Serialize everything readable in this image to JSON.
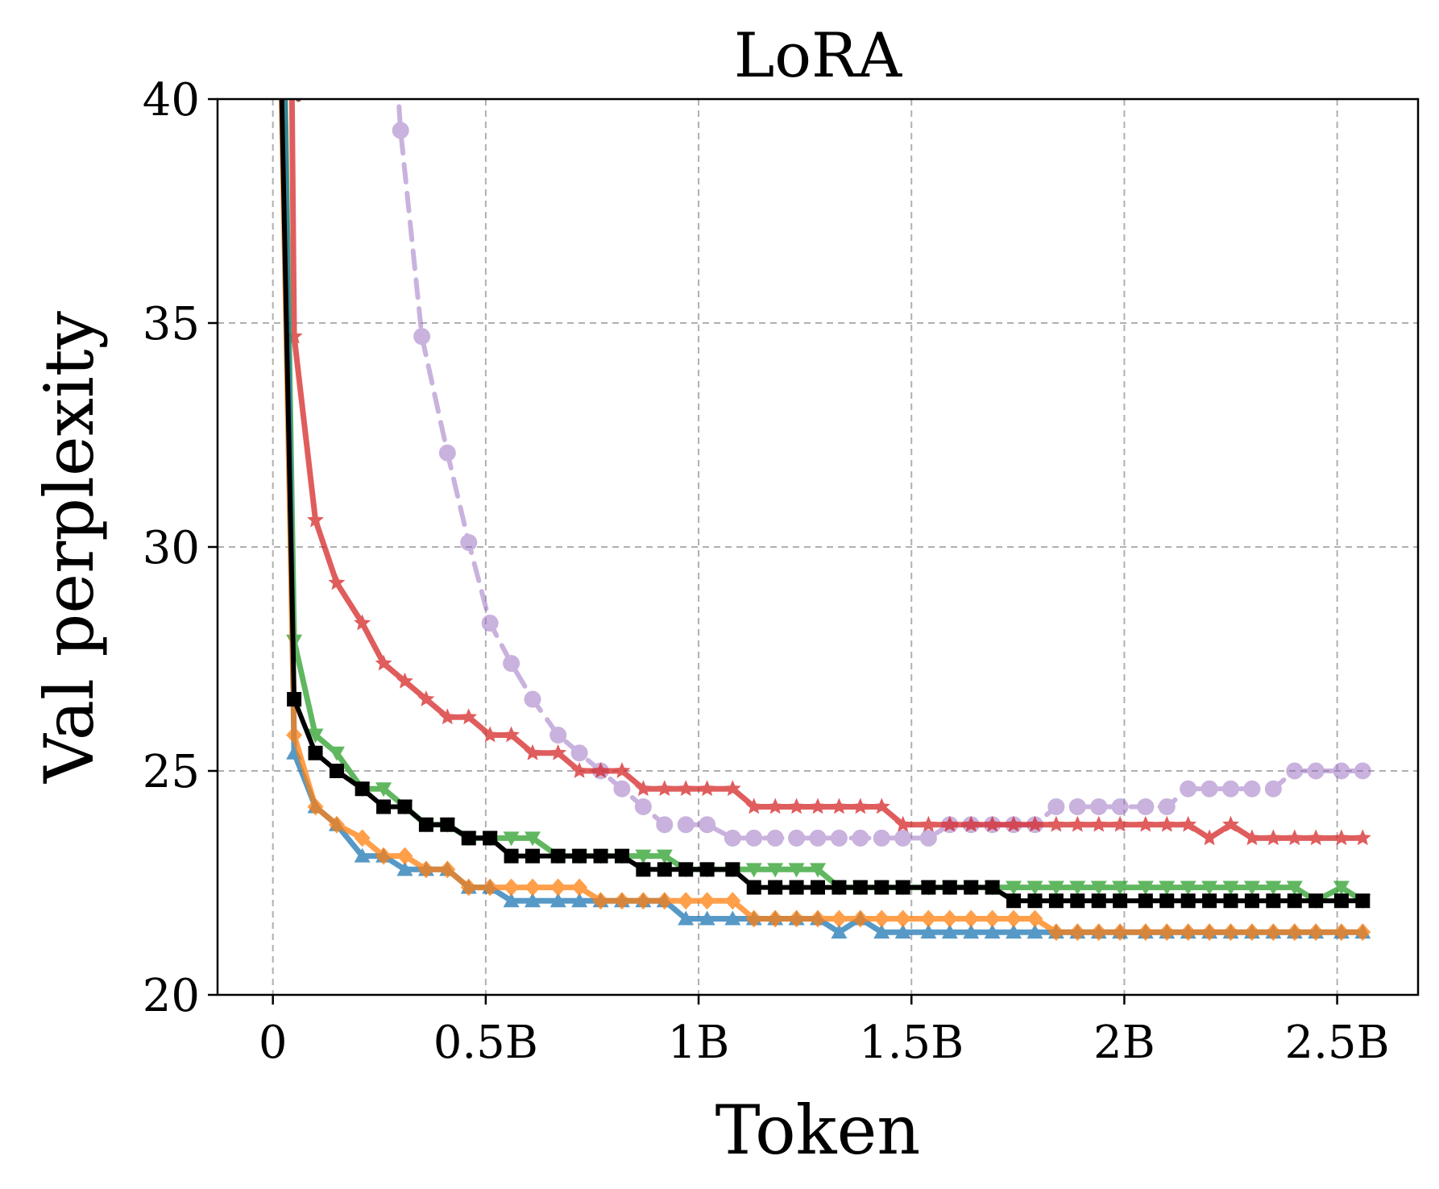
{
  "chart_data": {
    "type": "line",
    "title": "LoRA",
    "xlabel": "Token",
    "ylabel": "Val perplexity",
    "xlim": [
      -0.13,
      2.69
    ],
    "ylim": [
      20,
      40
    ],
    "x_unit": "billions of tokens",
    "grid": true,
    "xticks": [
      {
        "value": 0,
        "label": "0"
      },
      {
        "value": 0.5,
        "label": "0.5B"
      },
      {
        "value": 1.0,
        "label": "1B"
      },
      {
        "value": 1.5,
        "label": "1.5B"
      },
      {
        "value": 2.0,
        "label": "2B"
      },
      {
        "value": 2.5,
        "label": "2.5B"
      }
    ],
    "yticks": [
      {
        "value": 20,
        "label": "20"
      },
      {
        "value": 25,
        "label": "25"
      },
      {
        "value": 30,
        "label": "30"
      },
      {
        "value": 35,
        "label": "35"
      },
      {
        "value": 40,
        "label": "40"
      }
    ],
    "series": [
      {
        "color": "#9467bd",
        "marker": "circle",
        "dashed": true,
        "opacity": 0.5,
        "x": [
          0.26,
          0.3,
          0.35,
          0.41,
          0.46,
          0.51,
          0.56,
          0.61,
          0.67,
          0.72,
          0.77,
          0.82,
          0.87,
          0.92,
          0.97,
          1.02,
          1.08,
          1.13,
          1.18,
          1.23,
          1.28,
          1.33,
          1.38,
          1.43,
          1.48,
          1.54,
          1.59,
          1.64,
          1.69,
          1.74,
          1.79,
          1.84,
          1.89,
          1.94,
          1.99,
          2.05,
          2.1,
          2.15,
          2.2,
          2.25,
          2.3,
          2.35,
          2.4,
          2.45,
          2.51,
          2.56
        ],
        "y": [
          45.0,
          39.3,
          34.7,
          32.1,
          30.1,
          28.3,
          27.4,
          26.6,
          25.8,
          25.4,
          25.0,
          24.6,
          24.2,
          23.8,
          23.8,
          23.8,
          23.5,
          23.5,
          23.5,
          23.5,
          23.5,
          23.5,
          23.5,
          23.5,
          23.5,
          23.5,
          23.8,
          23.8,
          23.8,
          23.8,
          23.8,
          24.2,
          24.2,
          24.2,
          24.2,
          24.2,
          24.2,
          24.6,
          24.6,
          24.6,
          24.6,
          24.6,
          25.0,
          25.0,
          25.0,
          25.0
        ]
      },
      {
        "color": "#d62728",
        "marker": "star",
        "dashed": false,
        "opacity": 0.75,
        "x": [
          0.04,
          0.05,
          0.1,
          0.15,
          0.21,
          0.26,
          0.31,
          0.36,
          0.41,
          0.46,
          0.51,
          0.56,
          0.61,
          0.67,
          0.72,
          0.77,
          0.82,
          0.87,
          0.92,
          0.97,
          1.02,
          1.08,
          1.13,
          1.18,
          1.23,
          1.28,
          1.33,
          1.38,
          1.43,
          1.48,
          1.54,
          1.59,
          1.64,
          1.69,
          1.74,
          1.79,
          1.84,
          1.89,
          1.94,
          1.99,
          2.05,
          2.1,
          2.15,
          2.2,
          2.25,
          2.3,
          2.35,
          2.4,
          2.45,
          2.51,
          2.56
        ],
        "y": [
          45.0,
          34.7,
          30.6,
          29.2,
          28.3,
          27.4,
          27.0,
          26.6,
          26.2,
          26.2,
          25.8,
          25.8,
          25.4,
          25.4,
          25.0,
          25.0,
          25.0,
          24.6,
          24.6,
          24.6,
          24.6,
          24.6,
          24.2,
          24.2,
          24.2,
          24.2,
          24.2,
          24.2,
          24.2,
          23.8,
          23.8,
          23.8,
          23.8,
          23.8,
          23.8,
          23.8,
          23.8,
          23.8,
          23.8,
          23.8,
          23.8,
          23.8,
          23.8,
          23.5,
          23.8,
          23.5,
          23.5,
          23.5,
          23.5,
          23.5,
          23.5
        ]
      },
      {
        "color": "#2ca02c",
        "marker": "triangle-down",
        "dashed": false,
        "opacity": 0.75,
        "x": [
          0.02,
          0.05,
          0.1,
          0.15,
          0.21,
          0.26,
          0.31,
          0.36,
          0.41,
          0.46,
          0.51,
          0.56,
          0.61,
          0.67,
          0.72,
          0.77,
          0.82,
          0.87,
          0.92,
          0.97,
          1.02,
          1.08,
          1.13,
          1.18,
          1.23,
          1.28,
          1.33,
          1.38,
          1.43,
          1.48,
          1.54,
          1.59,
          1.64,
          1.69,
          1.74,
          1.79,
          1.84,
          1.89,
          1.94,
          1.99,
          2.05,
          2.1,
          2.15,
          2.2,
          2.25,
          2.3,
          2.35,
          2.4,
          2.45,
          2.51,
          2.56
        ],
        "y": [
          45.0,
          27.9,
          25.8,
          25.4,
          24.6,
          24.6,
          24.2,
          23.8,
          23.8,
          23.5,
          23.5,
          23.5,
          23.5,
          23.1,
          23.1,
          23.1,
          23.1,
          23.1,
          23.1,
          22.8,
          22.8,
          22.8,
          22.8,
          22.8,
          22.8,
          22.8,
          22.4,
          22.4,
          22.4,
          22.4,
          22.4,
          22.4,
          22.4,
          22.4,
          22.4,
          22.4,
          22.4,
          22.4,
          22.4,
          22.4,
          22.4,
          22.4,
          22.4,
          22.4,
          22.4,
          22.4,
          22.4,
          22.4,
          22.1,
          22.4,
          22.1
        ]
      },
      {
        "color": "#1f77b4",
        "marker": "triangle-up",
        "dashed": false,
        "opacity": 0.75,
        "x": [
          0.02,
          0.05,
          0.1,
          0.15,
          0.21,
          0.26,
          0.31,
          0.36,
          0.41,
          0.46,
          0.51,
          0.56,
          0.61,
          0.67,
          0.72,
          0.77,
          0.82,
          0.87,
          0.92,
          0.97,
          1.02,
          1.08,
          1.13,
          1.18,
          1.23,
          1.28,
          1.33,
          1.38,
          1.43,
          1.48,
          1.54,
          1.59,
          1.64,
          1.69,
          1.74,
          1.79,
          1.84,
          1.89,
          1.94,
          1.99,
          2.05,
          2.1,
          2.15,
          2.2,
          2.25,
          2.3,
          2.35,
          2.4,
          2.45,
          2.51,
          2.56
        ],
        "y": [
          45.0,
          25.4,
          24.2,
          23.8,
          23.1,
          23.1,
          22.8,
          22.8,
          22.8,
          22.4,
          22.4,
          22.1,
          22.1,
          22.1,
          22.1,
          22.1,
          22.1,
          22.1,
          22.1,
          21.7,
          21.7,
          21.7,
          21.7,
          21.7,
          21.7,
          21.7,
          21.4,
          21.7,
          21.4,
          21.4,
          21.4,
          21.4,
          21.4,
          21.4,
          21.4,
          21.4,
          21.4,
          21.4,
          21.4,
          21.4,
          21.4,
          21.4,
          21.4,
          21.4,
          21.4,
          21.4,
          21.4,
          21.4,
          21.4,
          21.4,
          21.4
        ]
      },
      {
        "color": "#ff7f0e",
        "marker": "diamond",
        "dashed": false,
        "opacity": 0.75,
        "x": [
          0.01,
          0.05,
          0.1,
          0.15,
          0.21,
          0.26,
          0.31,
          0.36,
          0.41,
          0.46,
          0.51,
          0.56,
          0.61,
          0.67,
          0.72,
          0.77,
          0.82,
          0.87,
          0.92,
          0.97,
          1.02,
          1.08,
          1.13,
          1.18,
          1.23,
          1.28,
          1.33,
          1.38,
          1.43,
          1.48,
          1.54,
          1.59,
          1.64,
          1.69,
          1.74,
          1.79,
          1.84,
          1.89,
          1.94,
          1.99,
          2.05,
          2.1,
          2.15,
          2.2,
          2.25,
          2.3,
          2.35,
          2.4,
          2.45,
          2.51,
          2.56
        ],
        "y": [
          45.0,
          25.8,
          24.2,
          23.8,
          23.5,
          23.1,
          23.1,
          22.8,
          22.8,
          22.4,
          22.4,
          22.4,
          22.4,
          22.4,
          22.4,
          22.1,
          22.1,
          22.1,
          22.1,
          22.1,
          22.1,
          22.1,
          21.7,
          21.7,
          21.7,
          21.7,
          21.7,
          21.7,
          21.7,
          21.7,
          21.7,
          21.7,
          21.7,
          21.7,
          21.7,
          21.7,
          21.4,
          21.4,
          21.4,
          21.4,
          21.4,
          21.4,
          21.4,
          21.4,
          21.4,
          21.4,
          21.4,
          21.4,
          21.4,
          21.4,
          21.4
        ]
      },
      {
        "color": "#000000",
        "marker": "square",
        "dashed": false,
        "opacity": 1.0,
        "x": [
          0.01,
          0.05,
          0.1,
          0.15,
          0.21,
          0.26,
          0.31,
          0.36,
          0.41,
          0.46,
          0.51,
          0.56,
          0.61,
          0.67,
          0.72,
          0.77,
          0.82,
          0.87,
          0.92,
          0.97,
          1.02,
          1.08,
          1.13,
          1.18,
          1.23,
          1.28,
          1.33,
          1.38,
          1.43,
          1.48,
          1.54,
          1.59,
          1.64,
          1.69,
          1.74,
          1.79,
          1.84,
          1.89,
          1.94,
          1.99,
          2.05,
          2.1,
          2.15,
          2.2,
          2.25,
          2.3,
          2.35,
          2.4,
          2.45,
          2.51,
          2.56
        ],
        "y": [
          45.0,
          26.6,
          25.4,
          25.0,
          24.6,
          24.2,
          24.2,
          23.8,
          23.8,
          23.5,
          23.5,
          23.1,
          23.1,
          23.1,
          23.1,
          23.1,
          23.1,
          22.8,
          22.8,
          22.8,
          22.8,
          22.8,
          22.4,
          22.4,
          22.4,
          22.4,
          22.4,
          22.4,
          22.4,
          22.4,
          22.4,
          22.4,
          22.4,
          22.4,
          22.1,
          22.1,
          22.1,
          22.1,
          22.1,
          22.1,
          22.1,
          22.1,
          22.1,
          22.1,
          22.1,
          22.1,
          22.1,
          22.1,
          22.1,
          22.1,
          22.1
        ]
      },
      {
        "color": "#8c564b",
        "marker": "none",
        "dashed": false,
        "opacity": 1.0,
        "x": [
          0.04,
          0.06
        ],
        "y": [
          45.0,
          40.0
        ]
      }
    ]
  }
}
